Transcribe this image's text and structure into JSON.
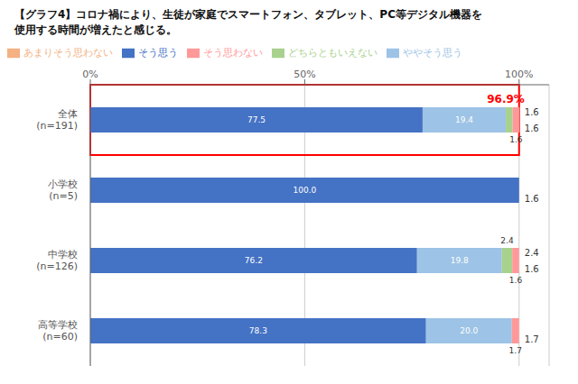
{
  "chart_data": {
    "type": "bar",
    "orientation": "horizontal",
    "stacked": true,
    "title": "【グラフ4】コロナ禍により、生徒が家庭でスマートフォン、タブレット、PC等デジタル機器を\n使用する時間が増えたと感じる。",
    "categories": [
      "全体\n(n=191)",
      "小学校\n(n=5)",
      "中学校\n(n=126)",
      "高等学校\n(n=60)"
    ],
    "series": [
      {
        "name": "そう思う",
        "color": "#4472C4",
        "values": [
          77.5,
          100.0,
          76.2,
          78.3
        ],
        "value_labels": [
          "77.5",
          "100.0",
          "76.2",
          "78.3"
        ]
      },
      {
        "name": "ややそう思う",
        "color": "#9DC3E6",
        "values": [
          19.4,
          0.0,
          19.8,
          20.0
        ],
        "value_labels": [
          "19.4",
          null,
          "19.8",
          "20.0"
        ]
      },
      {
        "name": "どちらともいえない",
        "color": "#A9D18E",
        "values": [
          1.6,
          0.0,
          2.4,
          0.0
        ],
        "value_labels": [
          null,
          null,
          "2.4",
          null
        ]
      },
      {
        "name": "あまりそう思わない",
        "color": "#F4B183",
        "values": [
          0.0,
          0.0,
          0.0,
          0.0
        ],
        "value_labels": [
          null,
          null,
          null,
          null
        ]
      },
      {
        "name": "そう思わない",
        "color": "#FF9999",
        "values": [
          1.6,
          0.0,
          1.6,
          1.7
        ],
        "value_labels": [
          "1.6",
          null,
          "1.6",
          "1.7"
        ]
      }
    ],
    "xlim": [
      0,
      107
    ],
    "xticks": [
      {
        "value": 0,
        "label": "0%"
      },
      {
        "value": 50,
        "label": "50%"
      },
      {
        "value": 100,
        "label": "100%"
      }
    ],
    "grid": true,
    "legend": "upper left",
    "data_labels": true,
    "annotations": [
      {
        "text": "96.9%",
        "category": "全体\n(n=191)",
        "x": 96.9,
        "color": "red"
      },
      {
        "text": "1.6",
        "category": "全体\n(n=191)"
      },
      {
        "text": "1.6",
        "category": "全体\n(n=191)"
      },
      {
        "text": "1.6",
        "category": "小学校\n(n=5)"
      },
      {
        "text": "2.4",
        "category": "中学校\n(n=126)"
      },
      {
        "text": "1.6",
        "category": "中学校\n(n=126)"
      },
      {
        "text": "1.7",
        "category": "高等学校\n(n=60)"
      }
    ]
  }
}
